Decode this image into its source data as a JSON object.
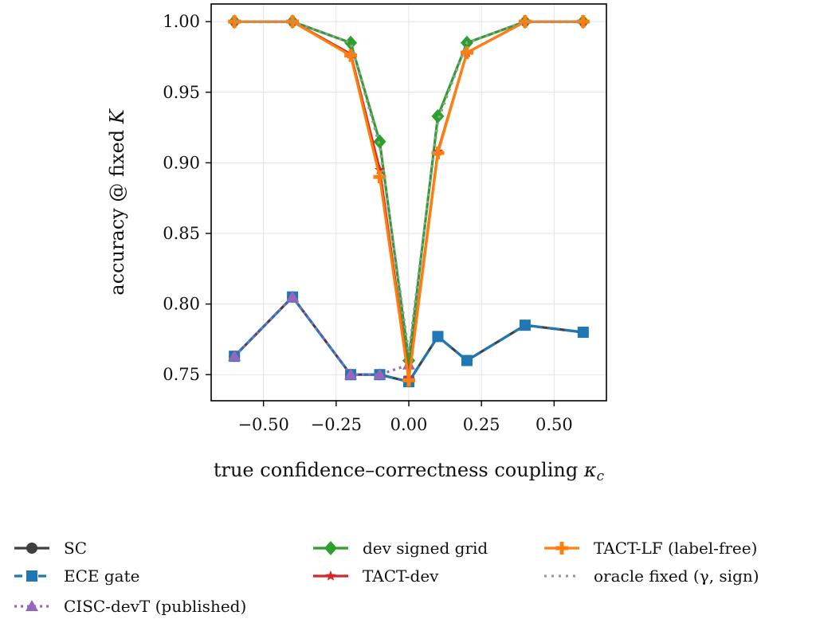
{
  "chart_data": {
    "type": "line",
    "xlabel": "true confidence–correctness coupling κ_c",
    "ylabel": "accuracy @ fixed K",
    "xlim": [
      -0.68,
      0.68
    ],
    "ylim": [
      0.7315,
      1.0125
    ],
    "x_ticks": [
      -0.5,
      -0.25,
      0.0,
      0.25,
      0.5
    ],
    "x_tick_labels": [
      "−0.50",
      "−0.25",
      "0.00",
      "0.25",
      "0.50"
    ],
    "y_ticks": [
      0.75,
      0.8,
      0.85,
      0.9,
      0.95,
      1.0
    ],
    "y_tick_labels": [
      "0.75",
      "0.80",
      "0.85",
      "0.90",
      "0.95",
      "1.00"
    ],
    "grid": true,
    "legend_position": "below",
    "series": [
      {
        "name": "SC",
        "color": "#404040",
        "marker": "circle",
        "dash": "solid",
        "x": [
          -0.6,
          -0.4,
          -0.2,
          -0.1,
          0.0,
          0.1,
          0.2,
          0.4,
          0.6
        ],
        "y": [
          0.763,
          0.805,
          0.75,
          0.75,
          0.745,
          0.777,
          0.76,
          0.785,
          0.78
        ]
      },
      {
        "name": "ECE gate",
        "color": "#1f77b4",
        "marker": "square",
        "dash": "dashed",
        "x": [
          -0.6,
          -0.4,
          -0.2,
          -0.1,
          0.0,
          0.1,
          0.2,
          0.4,
          0.6
        ],
        "y": [
          0.763,
          0.805,
          0.75,
          0.75,
          0.745,
          0.777,
          0.76,
          0.785,
          0.78
        ]
      },
      {
        "name": "CISC-devT (published)",
        "color": "#9467bd",
        "marker": "triangle",
        "dash": "dotted",
        "x": [
          -0.6,
          -0.4,
          -0.2,
          -0.1,
          0.0
        ],
        "y": [
          0.763,
          0.805,
          0.75,
          0.75,
          0.757
        ]
      },
      {
        "name": "dev signed grid",
        "color": "#2ca02c",
        "marker": "diamond",
        "dash": "solid",
        "x": [
          -0.6,
          -0.4,
          -0.2,
          -0.1,
          0.0,
          0.1,
          0.2,
          0.4,
          0.6
        ],
        "y": [
          1.0,
          1.0,
          0.985,
          0.915,
          0.76,
          0.933,
          0.985,
          1.0,
          1.0
        ]
      },
      {
        "name": "TACT-dev",
        "color": "#d62728",
        "marker": "star",
        "dash": "solid",
        "x": [
          -0.6,
          -0.4,
          -0.2,
          -0.1,
          0.0,
          0.1,
          0.2,
          0.4,
          0.6
        ],
        "y": [
          1.0,
          1.0,
          0.977,
          0.895,
          0.748,
          0.908,
          0.978,
          1.0,
          1.0
        ]
      },
      {
        "name": "TACT-LF (label-free)",
        "color": "#ff7f0e",
        "marker": "plus",
        "dash": "solid",
        "x": [
          -0.6,
          -0.4,
          -0.2,
          -0.1,
          0.0,
          0.1,
          0.2,
          0.4,
          0.6
        ],
        "y": [
          1.0,
          1.0,
          0.976,
          0.89,
          0.746,
          0.907,
          0.978,
          1.0,
          1.0
        ]
      },
      {
        "name": "oracle fixed (γ, sign)",
        "color": "#9a9a9a",
        "marker": "none",
        "dash": "dot",
        "x": [
          -0.6,
          -0.4,
          -0.2,
          -0.1,
          0.0,
          0.1,
          0.2,
          0.4,
          0.6
        ],
        "y": [
          1.0,
          1.0,
          0.985,
          0.912,
          0.765,
          0.93,
          0.985,
          1.0,
          1.0
        ]
      }
    ]
  }
}
